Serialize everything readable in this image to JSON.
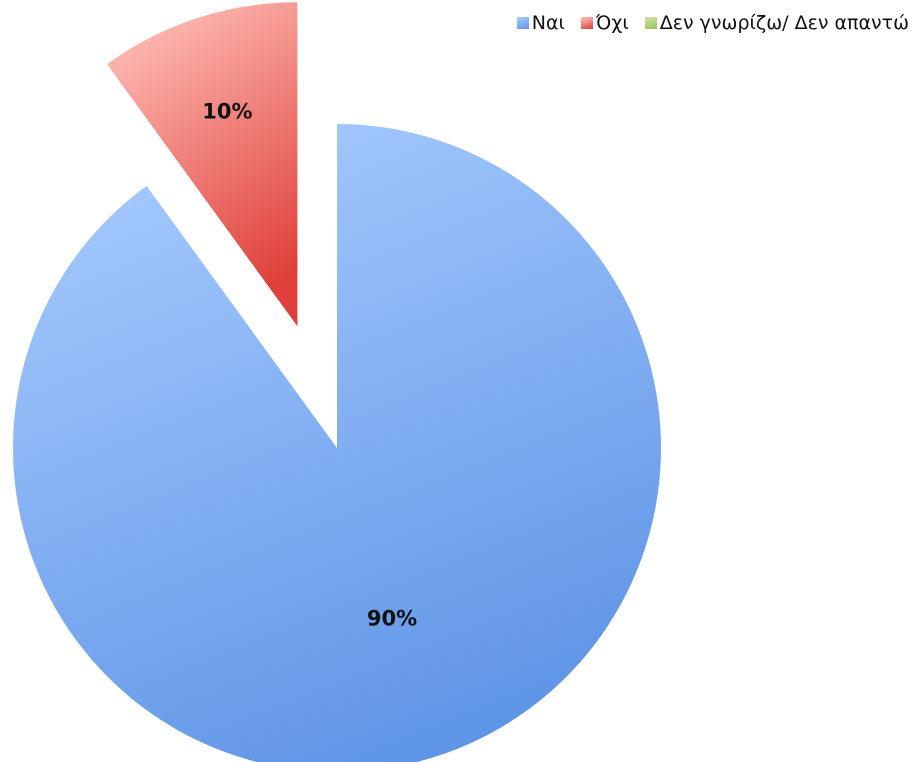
{
  "chart_data": {
    "type": "pie",
    "legend_position": "top-right",
    "slices": [
      {
        "label": "Ναι",
        "value": 90,
        "display": "90%",
        "color": "#5f95e6",
        "light": "#a9ccff",
        "exploded": false
      },
      {
        "label": "Όχι",
        "value": 10,
        "display": "10%",
        "color": "#e0403a",
        "light": "#ffc3bc",
        "exploded": true
      },
      {
        "label": "Δεν γνωρίζω/ Δεν απαντώ",
        "value": 0,
        "display": "",
        "color": "#9cc15a",
        "light": "#cfe4a6",
        "exploded": false
      }
    ]
  }
}
